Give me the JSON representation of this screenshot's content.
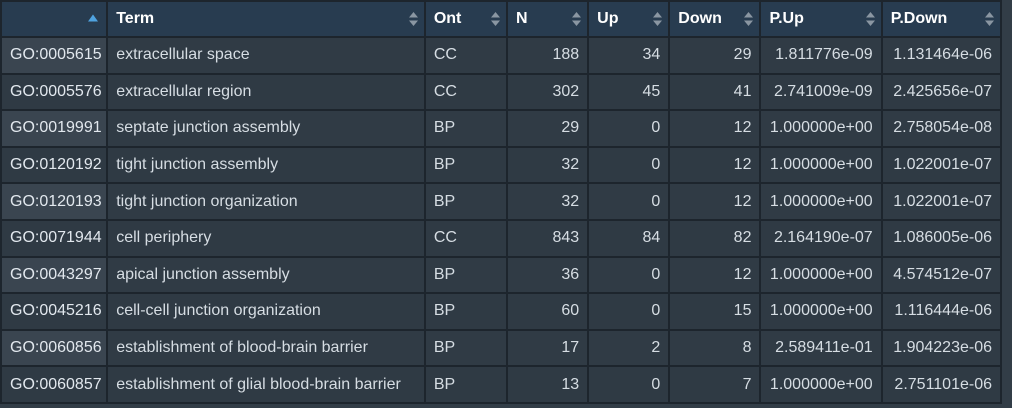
{
  "table": {
    "columns": [
      "",
      "Term",
      "Ont",
      "N",
      "Up",
      "Down",
      "P.Up",
      "P.Down"
    ],
    "sort": {
      "column": "",
      "direction": "ascending",
      "active_color": "#4fa3e0"
    },
    "rows": [
      {
        "id": "GO:0005615",
        "term": "extracellular space",
        "ont": "CC",
        "n": "188",
        "up": "34",
        "down": "29",
        "pup": "1.811776e-09",
        "pdown": "1.131464e-06"
      },
      {
        "id": "GO:0005576",
        "term": "extracellular region",
        "ont": "CC",
        "n": "302",
        "up": "45",
        "down": "41",
        "pup": "2.741009e-09",
        "pdown": "2.425656e-07"
      },
      {
        "id": "GO:0019991",
        "term": "septate junction assembly",
        "ont": "BP",
        "n": "29",
        "up": "0",
        "down": "12",
        "pup": "1.000000e+00",
        "pdown": "2.758054e-08"
      },
      {
        "id": "GO:0120192",
        "term": "tight junction assembly",
        "ont": "BP",
        "n": "32",
        "up": "0",
        "down": "12",
        "pup": "1.000000e+00",
        "pdown": "1.022001e-07"
      },
      {
        "id": "GO:0120193",
        "term": "tight junction organization",
        "ont": "BP",
        "n": "32",
        "up": "0",
        "down": "12",
        "pup": "1.000000e+00",
        "pdown": "1.022001e-07"
      },
      {
        "id": "GO:0071944",
        "term": "cell periphery",
        "ont": "CC",
        "n": "843",
        "up": "84",
        "down": "82",
        "pup": "2.164190e-07",
        "pdown": "1.086005e-06"
      },
      {
        "id": "GO:0043297",
        "term": "apical junction assembly",
        "ont": "BP",
        "n": "36",
        "up": "0",
        "down": "12",
        "pup": "1.000000e+00",
        "pdown": "4.574512e-07"
      },
      {
        "id": "GO:0045216",
        "term": "cell-cell junction organization",
        "ont": "BP",
        "n": "60",
        "up": "0",
        "down": "15",
        "pup": "1.000000e+00",
        "pdown": "1.116444e-06"
      },
      {
        "id": "GO:0060856",
        "term": "establishment of blood-brain barrier",
        "ont": "BP",
        "n": "17",
        "up": "2",
        "down": "8",
        "pup": "2.589411e-01",
        "pdown": "1.904223e-06"
      },
      {
        "id": "GO:0060857",
        "term": "establishment of glial blood-brain barrier",
        "ont": "BP",
        "n": "13",
        "up": "0",
        "down": "7",
        "pup": "1.000000e+00",
        "pdown": "2.751101e-06"
      }
    ]
  }
}
